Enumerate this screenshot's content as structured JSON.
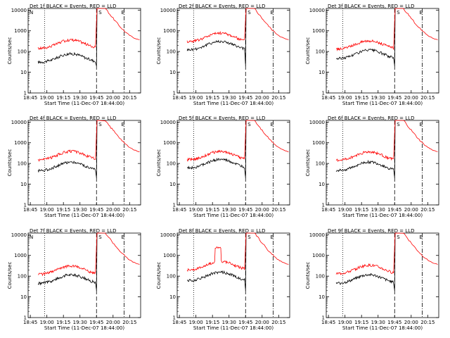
{
  "chart_data": [
    {
      "type": "line",
      "title": "Det 1f BLACK = Events, RED = LLD",
      "xlabel": "Start Time (11-Dec-07 18:44:00)",
      "ylabel": "Counts/sec",
      "variant": 1
    },
    {
      "type": "line",
      "title": "Det 2f BLACK = Events, RED = LLD",
      "xlabel": "Start Time (11-Dec-07 18:44:00)",
      "ylabel": "Counts/sec",
      "variant": 2
    },
    {
      "type": "line",
      "title": "Det 3f BLACK = Events, RED = LLD",
      "xlabel": "Start Time (11-Dec-07 18:44:00)",
      "ylabel": "Counts/sec",
      "variant": 3
    },
    {
      "type": "line",
      "title": "Det 4f BLACK = Events, RED = LLD",
      "xlabel": "Start Time (11-Dec-07 18:44:00)",
      "ylabel": "Counts/sec",
      "variant": 4
    },
    {
      "type": "line",
      "title": "Det 5f BLACK = Events, RED = LLD",
      "xlabel": "Start Time (11-Dec-07 18:44:00)",
      "ylabel": "Counts/sec",
      "variant": 5
    },
    {
      "type": "line",
      "title": "Det 6f BLACK = Events, RED = LLD",
      "xlabel": "Start Time (11-Dec-07 18:44:00)",
      "ylabel": "Counts/sec",
      "variant": 6
    },
    {
      "type": "line",
      "title": "Det 7f BLACK = Events, RED = LLD",
      "xlabel": "Start Time (11-Dec-07 18:44:00)",
      "ylabel": "Counts/sec",
      "variant": 7
    },
    {
      "type": "line",
      "title": "Det 8f BLACK = Events, RED = LLD",
      "xlabel": "Start Time (11-Dec-07 18:44:00)",
      "ylabel": "Counts/sec",
      "variant": 8
    },
    {
      "type": "line",
      "title": "Det 9f BLACK = Events, RED = LLD",
      "xlabel": "Start Time (11-Dec-07 18:44:00)",
      "ylabel": "Counts/sec",
      "variant": 9
    }
  ],
  "shared": {
    "y_scale": "log",
    "ylim": [
      1,
      12000
    ],
    "y_ticks": [
      "1",
      "10",
      "100",
      "1000",
      "10000"
    ],
    "x_ticks": [
      "18:45",
      "19:00",
      "19:15",
      "19:30",
      "19:45",
      "20:00",
      "20:15"
    ],
    "markers": {
      "S": "S",
      "E": "E",
      "N": "N"
    },
    "colors": {
      "events": "#000000",
      "lld": "#ff0000",
      "axes": "#000000"
    }
  }
}
